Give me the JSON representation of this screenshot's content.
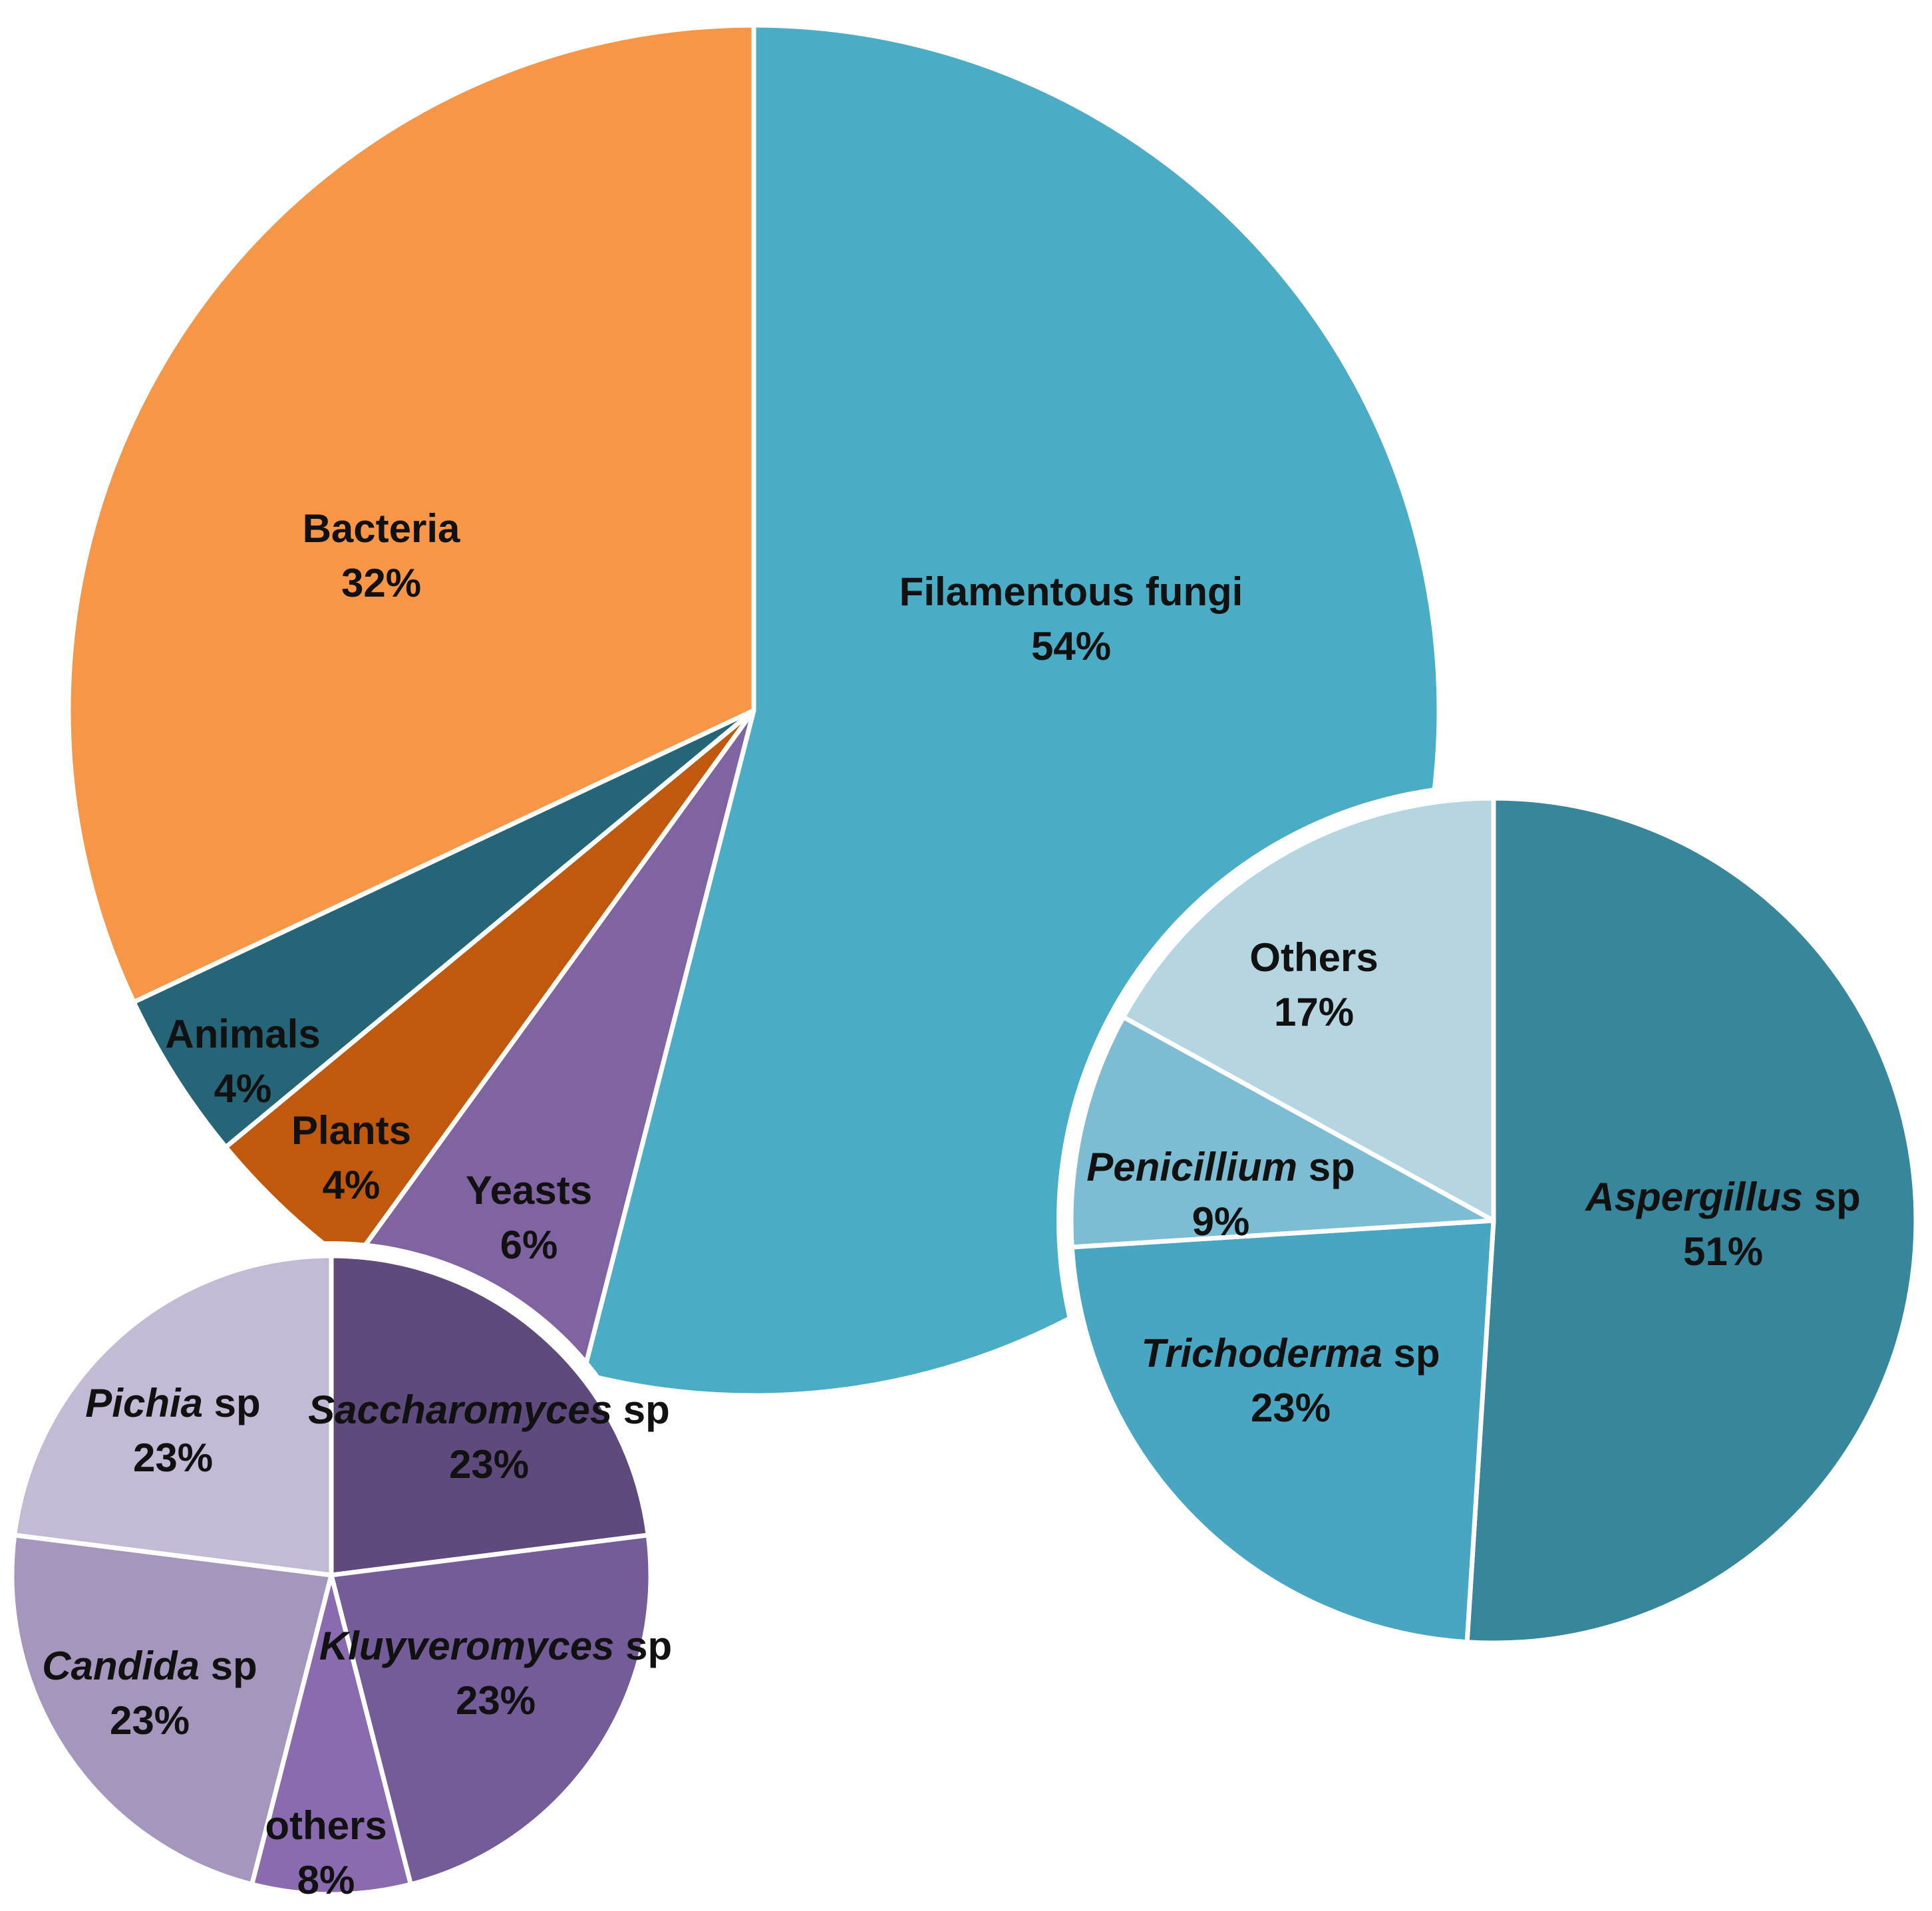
{
  "chart_data": [
    {
      "type": "pie",
      "slices": [
        {
          "label": "Filamentous fungi",
          "name_parts": [
            {
              "text": "Filamentous fungi",
              "italic": false
            }
          ],
          "value": 54,
          "value_label": "54%",
          "color": "#4BACC6"
        },
        {
          "label": "Yeasts",
          "name_parts": [
            {
              "text": "Yeasts",
              "italic": false
            }
          ],
          "value": 6,
          "value_label": "6%",
          "color": "#8064A2"
        },
        {
          "label": "Plants",
          "name_parts": [
            {
              "text": "Plants",
              "italic": false
            }
          ],
          "value": 4,
          "value_label": "4%",
          "color": "#C0590E"
        },
        {
          "label": "Animals",
          "name_parts": [
            {
              "text": "Animals",
              "italic": false
            }
          ],
          "value": 4,
          "value_label": "4%",
          "color": "#266478"
        },
        {
          "label": "Bacteria",
          "name_parts": [
            {
              "text": "Bacteria",
              "italic": false
            }
          ],
          "value": 32,
          "value_label": "32%",
          "color": "#F79646"
        }
      ]
    },
    {
      "type": "pie",
      "slices": [
        {
          "label": "Aspergillus sp",
          "name_parts": [
            {
              "text": "Aspergillus",
              "italic": true
            },
            {
              "text": " sp",
              "italic": false
            }
          ],
          "value": 51,
          "value_label": "51%",
          "color": "#37869C"
        },
        {
          "label": "Trichoderma sp",
          "name_parts": [
            {
              "text": "Trichoderma",
              "italic": true
            },
            {
              "text": " sp",
              "italic": false
            }
          ],
          "value": 23,
          "value_label": "23%",
          "color": "#48A6C3"
        },
        {
          "label": "Penicillium sp",
          "name_parts": [
            {
              "text": "Penicillium",
              "italic": true
            },
            {
              "text": " sp",
              "italic": false
            }
          ],
          "value": 9,
          "value_label": "9%",
          "color": "#7DBDD3"
        },
        {
          "label": "Others",
          "name_parts": [
            {
              "text": "Others",
              "italic": false
            }
          ],
          "value": 17,
          "value_label": "17%",
          "color": "#B5D6E1"
        }
      ]
    },
    {
      "type": "pie",
      "slices": [
        {
          "label": "Saccharomyces sp",
          "name_parts": [
            {
              "text": "Saccharomyces",
              "italic": true
            },
            {
              "text": " sp",
              "italic": false
            }
          ],
          "value": 23,
          "value_label": "23%",
          "color": "#5E4A7D"
        },
        {
          "label": "Kluyveromyces sp",
          "name_parts": [
            {
              "text": "Kluyveromyces",
              "italic": true
            },
            {
              "text": " sp",
              "italic": false
            }
          ],
          "value": 23,
          "value_label": "23%",
          "color": "#735C98"
        },
        {
          "label": "others",
          "name_parts": [
            {
              "text": "others",
              "italic": false
            }
          ],
          "value": 8,
          "value_label": "8%",
          "color": "#8A6BB0"
        },
        {
          "label": "Candida sp",
          "name_parts": [
            {
              "text": "Candida",
              "italic": true
            },
            {
              "text": " sp",
              "italic": false
            }
          ],
          "value": 23,
          "value_label": "23%",
          "color": "#A596BE"
        },
        {
          "label": "Pichia sp",
          "name_parts": [
            {
              "text": "Pichia",
              "italic": true
            },
            {
              "text": " sp",
              "italic": false
            }
          ],
          "value": 23,
          "value_label": "23%",
          "color": "#C3BAD5"
        }
      ]
    }
  ]
}
